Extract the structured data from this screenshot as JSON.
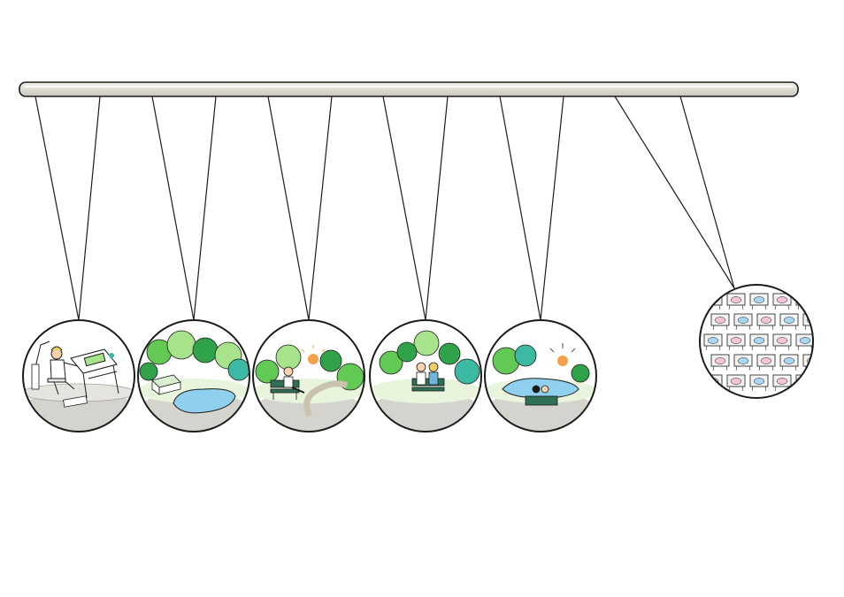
{
  "scene": {
    "colors": {
      "bar_top": "#f1efe9",
      "bar_bottom": "#c9c5bb",
      "line": "#1b1b1b",
      "ground": "#d5d3ce",
      "ground_rim": "#a9a6a0",
      "tree_light": "#a6e38a",
      "tree_mid": "#63c955",
      "tree_dark": "#2fa24a",
      "tree_teal": "#3cb9a2",
      "water": "#8fd0ee",
      "sun": "#f4a14b",
      "bench": "#2f6f56",
      "path": "#efe9d8",
      "skin": "#f6d3ad",
      "hair": "#f0cf66",
      "shirt": "#6fb6d9",
      "baby_pink": "#f3c4da",
      "baby_blue": "#a9d6f0",
      "cot": "#f4f4f4"
    },
    "balls": [
      {
        "name": "ball-designer-at-drafting-table",
        "theme": "designer"
      },
      {
        "name": "ball-park-with-pond-and-greenhouse",
        "theme": "pond-park"
      },
      {
        "name": "ball-person-reading-on-bench",
        "theme": "reading"
      },
      {
        "name": "ball-couple-on-bench-in-garden",
        "theme": "couple"
      },
      {
        "name": "ball-couple-by-lake-at-sunset",
        "theme": "lake"
      },
      {
        "name": "ball-nursery-of-babies-in-cots",
        "theme": "babies"
      }
    ]
  }
}
